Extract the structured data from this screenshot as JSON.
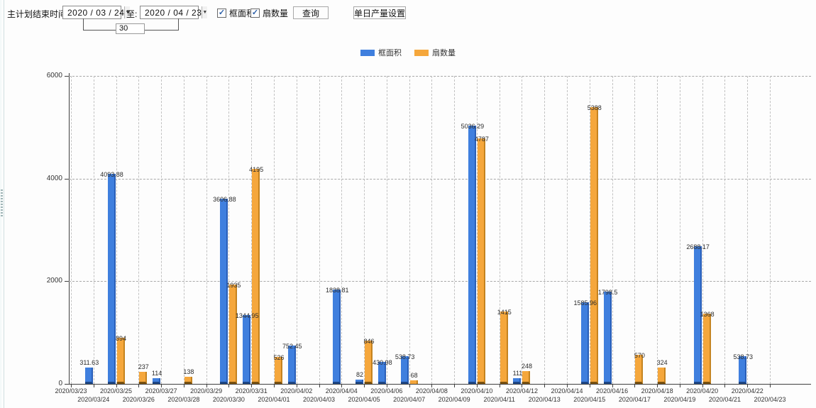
{
  "toolbar": {
    "label_plan_end": "主计划结束时间:",
    "date_from": "2020 / 03 / 24",
    "to_label": "至:",
    "date_to": "2020 / 04 / 23",
    "interval_days": "30",
    "checkbox_area": "框面积",
    "checkbox_fans": "扇数量",
    "query_button": "查询",
    "daily_output_button": "单日产量设置"
  },
  "legend": [
    {
      "label": "框面积",
      "color": "#3F7FDE"
    },
    {
      "label": "扇数量",
      "color": "#F5A73C"
    }
  ],
  "chart_data": {
    "type": "bar",
    "title": "",
    "xlabel": "",
    "ylabel": "",
    "ylim": [
      0,
      6000
    ],
    "yticks": [
      0,
      2000,
      4000,
      6000
    ],
    "grid": true,
    "legend_position": "top-center",
    "categories": [
      "2020/03/23",
      "2020/03/24",
      "2020/03/25",
      "2020/03/26",
      "2020/03/27",
      "2020/03/28",
      "2020/03/29",
      "2020/03/30",
      "2020/03/31",
      "2020/04/01",
      "2020/04/02",
      "2020/04/03",
      "2020/04/04",
      "2020/04/05",
      "2020/04/06",
      "2020/04/07",
      "2020/04/08",
      "2020/04/09",
      "2020/04/10",
      "2020/04/11",
      "2020/04/12",
      "2020/04/13",
      "2020/04/14",
      "2020/04/15",
      "2020/04/16",
      "2020/04/17",
      "2020/04/18",
      "2020/04/19",
      "2020/04/20",
      "2020/04/21",
      "2020/04/22",
      "2020/04/23"
    ],
    "series": [
      {
        "name": "框面积",
        "color": "#3F7FDE",
        "edge_color": "#2A5FB8",
        "base_color": "#1D4685",
        "values": [
          0,
          311.63,
          4093.88,
          0,
          114,
          0,
          0,
          3606.88,
          1344.95,
          0,
          752.45,
          0,
          1838.81,
          82,
          430.98,
          538.73,
          0,
          0,
          5036.29,
          0,
          111,
          0,
          0,
          1585.96,
          1798.5,
          0,
          0,
          0,
          2688.17,
          0,
          538.73,
          0
        ]
      },
      {
        "name": "扇数量",
        "color": "#F5A73C",
        "edge_color": "#C5831F",
        "base_color": "#7A5210",
        "values": [
          0,
          0,
          894,
          237,
          0,
          138,
          0,
          1935,
          4195,
          526,
          0,
          0,
          0,
          846,
          0,
          68,
          0,
          0,
          4787,
          1415,
          248,
          0,
          0,
          5388,
          0,
          570,
          324,
          0,
          1368,
          0,
          0,
          0
        ]
      }
    ]
  }
}
